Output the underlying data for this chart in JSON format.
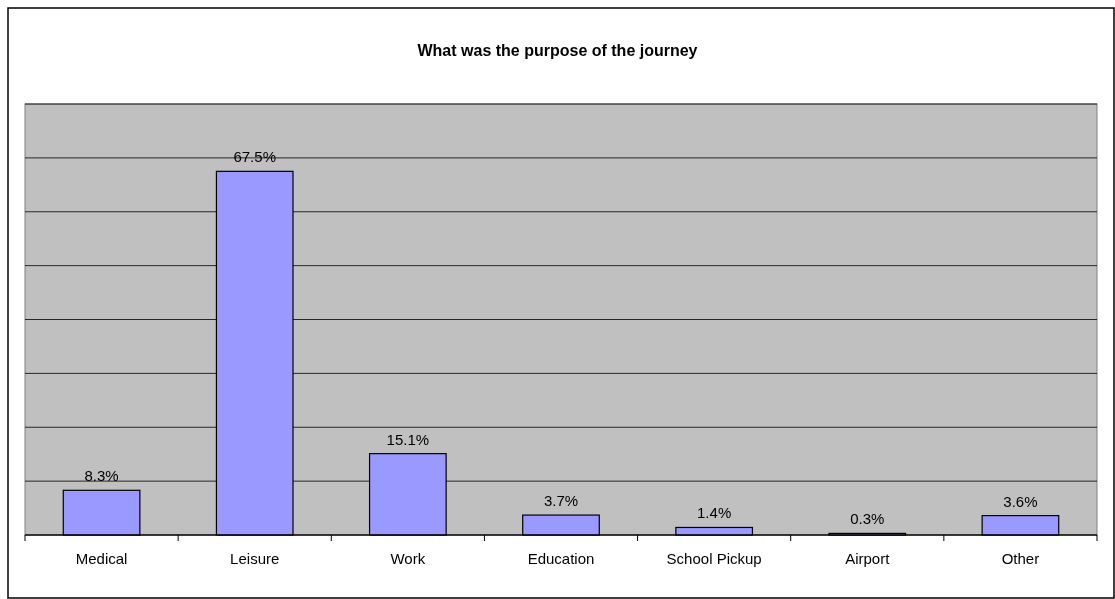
{
  "chart_data": {
    "type": "bar",
    "title": "What was the purpose of the journey",
    "categories": [
      "Medical",
      "Leisure",
      "Work",
      "Education",
      "School Pickup",
      "Airport",
      "Other"
    ],
    "values": [
      8.3,
      67.5,
      15.1,
      3.7,
      1.4,
      0.3,
      3.6
    ],
    "value_labels": [
      "8.3%",
      "67.5%",
      "15.1%",
      "3.7%",
      "1.4%",
      "0.3%",
      "3.6%"
    ],
    "color": "#9999ff",
    "ylim": [
      0,
      80
    ],
    "yticks": [
      {
        "value": 0,
        "label": null
      },
      {
        "value": 10,
        "label": null
      },
      {
        "value": 20,
        "label": null
      },
      {
        "value": 30,
        "label": null
      },
      {
        "value": 40,
        "label": null
      },
      {
        "value": 50,
        "label": null
      },
      {
        "value": 60,
        "label": null
      },
      {
        "value": 70,
        "label": null
      },
      {
        "value": 80,
        "label": null
      }
    ],
    "grid": "y",
    "tick_labels": "x"
  }
}
